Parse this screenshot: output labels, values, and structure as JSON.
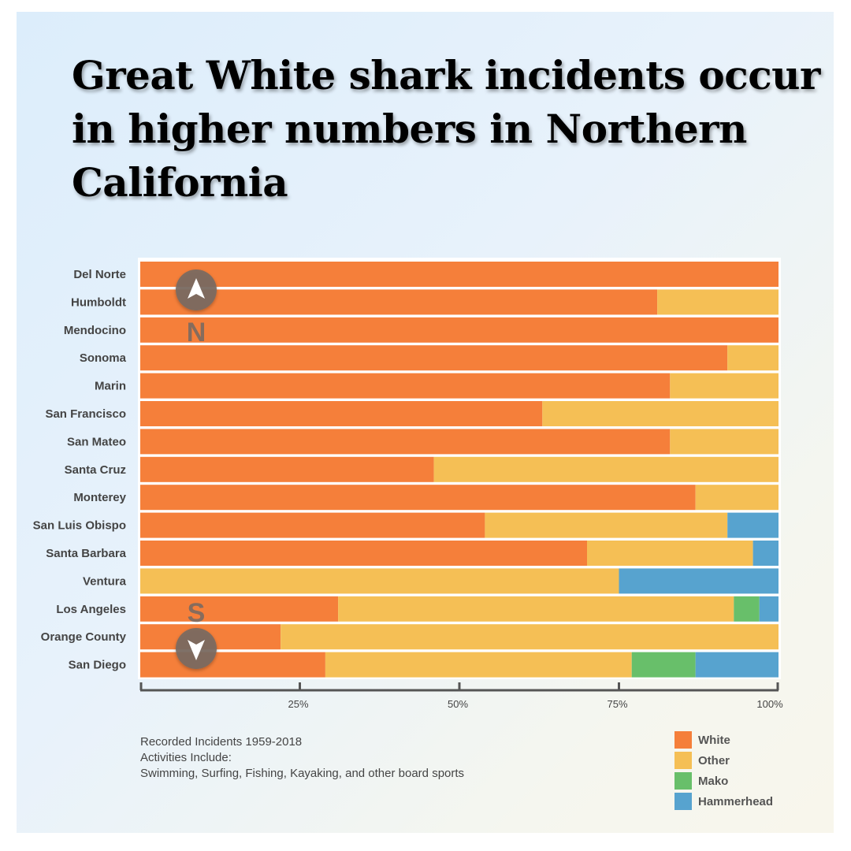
{
  "title": "Great White shark incidents occur in higher numbers in Northern California",
  "notes": [
    "Recorded Incidents 1959-2018",
    "Activities Include:",
    "Swimming, Surfing, Fishing, Kayaking, and other board sports"
  ],
  "compass": {
    "north": "N",
    "south": "S"
  },
  "colors": {
    "White": "#f57f3a",
    "Other": "#f5bf55",
    "Mako": "#68bf6a",
    "Hammerhead": "#57a3cf"
  },
  "legend": [
    {
      "label": "White",
      "color": "#f57f3a"
    },
    {
      "label": "Other",
      "color": "#f5bf55"
    },
    {
      "label": "Mako",
      "color": "#68bf6a"
    },
    {
      "label": "Hammerhead",
      "color": "#57a3cf"
    }
  ],
  "chart_data": {
    "type": "bar",
    "orientation": "horizontal",
    "stacked": true,
    "normalized_percent": true,
    "title": "Great White shark incidents occur in higher numbers in Northern California",
    "categories": [
      "Del Norte",
      "Humboldt",
      "Mendocino",
      "Sonoma",
      "Marin",
      "San Francisco",
      "San Mateo",
      "Santa Cruz",
      "Monterey",
      "San Luis Obispo",
      "Santa Barbara",
      "Ventura",
      "Los Angeles",
      "Orange County",
      "San Diego"
    ],
    "series": [
      {
        "name": "White",
        "values": [
          100,
          81,
          100,
          92,
          83,
          63,
          83,
          46,
          87,
          54,
          70,
          0,
          31,
          22,
          29
        ]
      },
      {
        "name": "Other",
        "values": [
          0,
          19,
          0,
          8,
          17,
          37,
          17,
          54,
          13,
          38,
          26,
          75,
          62,
          78,
          48
        ]
      },
      {
        "name": "Mako",
        "values": [
          0,
          0,
          0,
          0,
          0,
          0,
          0,
          0,
          0,
          0,
          0,
          0,
          4,
          0,
          10
        ]
      },
      {
        "name": "Hammerhead",
        "values": [
          0,
          0,
          0,
          0,
          0,
          0,
          0,
          0,
          0,
          8,
          4,
          25,
          3,
          0,
          13
        ]
      }
    ],
    "xticks": [
      "25%",
      "50%",
      "75%",
      "100%"
    ],
    "xtick_values": [
      25,
      50,
      75,
      100
    ],
    "xlim": [
      0,
      100
    ],
    "xlabel": "",
    "ylabel": "",
    "legend_position": "bottom-right"
  }
}
